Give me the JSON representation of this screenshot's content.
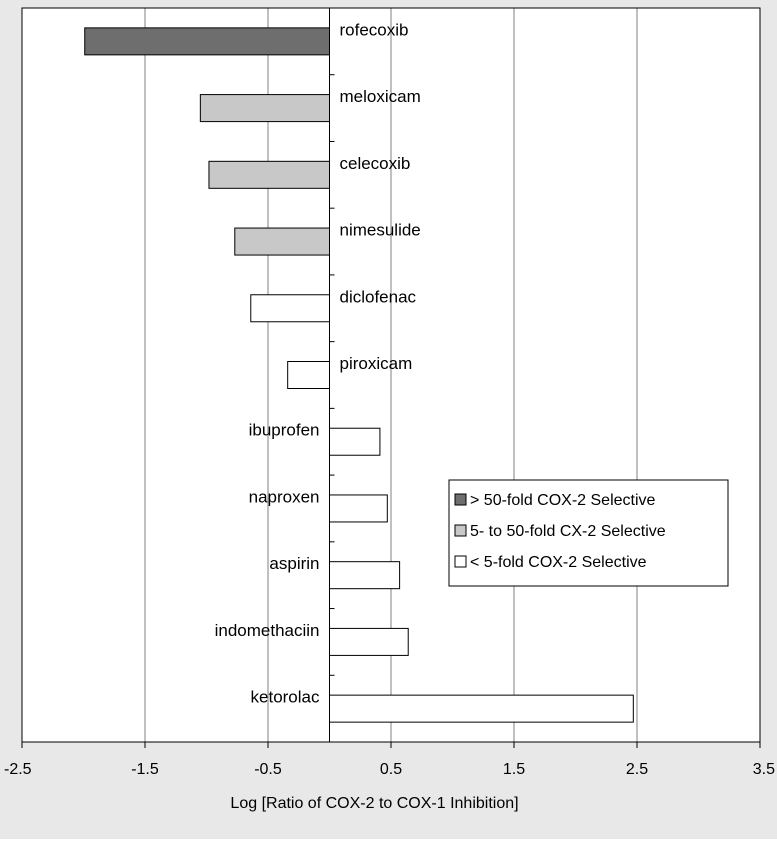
{
  "chart_data": {
    "type": "bar",
    "orientation": "horizontal",
    "categories": [
      "rofecoxib",
      "meloxicam",
      "celecoxib",
      "nimesulide",
      "diclofenac",
      "piroxicam",
      "ibuprofen",
      "naproxen",
      "aspirin",
      "indomethaciin",
      "ketorolac"
    ],
    "values": [
      -1.99,
      -1.05,
      -0.98,
      -0.77,
      -0.64,
      -0.34,
      0.41,
      0.47,
      0.57,
      0.64,
      2.47
    ],
    "classes": [
      "high",
      "mid",
      "mid",
      "mid",
      "low",
      "low",
      "low",
      "low",
      "low",
      "low",
      "low"
    ],
    "xlim": [
      -2.5,
      3.5
    ],
    "xticks": [
      -2.5,
      -1.5,
      -0.5,
      0.5,
      1.5,
      2.5,
      3.5
    ],
    "xtick_labels": [
      "-2.5",
      "-1.5",
      "-0.5",
      "0.5",
      "1.5",
      "2.5",
      "3.5"
    ],
    "gridlines": [
      -1.5,
      -0.5,
      0.5,
      1.5,
      2.5
    ],
    "xlabel": "Log [Ratio of COX-2 to COX-1 Inhibition]",
    "legend": {
      "placement": "right",
      "entries": [
        {
          "key": "high",
          "label": "> 50-fold COX-2 Selective",
          "color": "#6e6e6e"
        },
        {
          "key": "mid",
          "label": "5- to 50-fold CX-2 Selective",
          "color": "#c8c8c8"
        },
        {
          "key": "low",
          "label": "< 5-fold COX-2 Selective",
          "color": "#ffffff"
        }
      ]
    },
    "colors": {
      "background": "#ffffff",
      "outer": "#e8e8e8",
      "grid": "#c0c0c0",
      "border": "#000000"
    }
  }
}
